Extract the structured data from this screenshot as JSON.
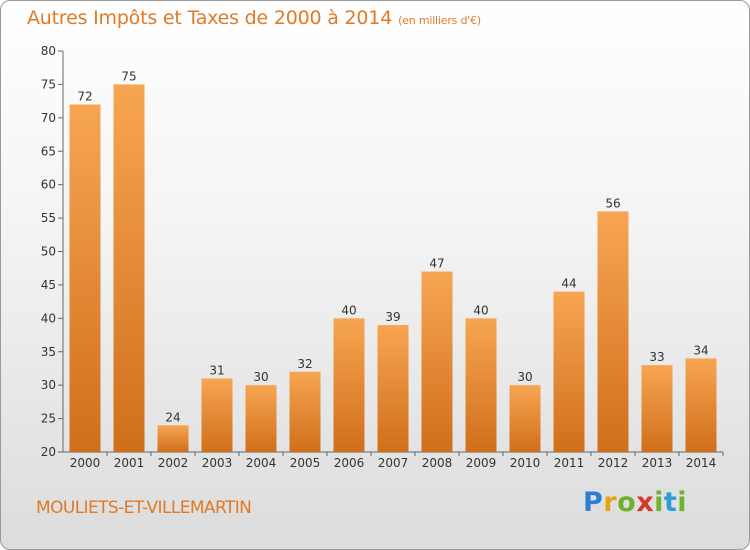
{
  "title": "Autres Impôts et Taxes de 2000 à 2014",
  "subtitle": "(en milliers d'€)",
  "city": "MOULIETS-ET-VILLEMARTIN",
  "logo": {
    "text": "Proxiti",
    "letters": [
      "P",
      "r",
      "o",
      "x",
      "i",
      "t",
      "i"
    ]
  },
  "colors": {
    "accent": "#e07a26",
    "bar_top": "#f7a552",
    "bar_bottom": "#d06f1a"
  },
  "chart_data": {
    "type": "bar",
    "categories": [
      "2000",
      "2001",
      "2002",
      "2003",
      "2004",
      "2005",
      "2006",
      "2007",
      "2008",
      "2009",
      "2010",
      "2011",
      "2012",
      "2013",
      "2014"
    ],
    "values": [
      72,
      75,
      24,
      31,
      30,
      32,
      40,
      39,
      47,
      40,
      30,
      44,
      56,
      33,
      34
    ],
    "ylim": [
      20,
      80
    ],
    "yticks": [
      20,
      25,
      30,
      35,
      40,
      45,
      50,
      55,
      60,
      65,
      70,
      75,
      80
    ],
    "grid": false,
    "legend": "none"
  }
}
